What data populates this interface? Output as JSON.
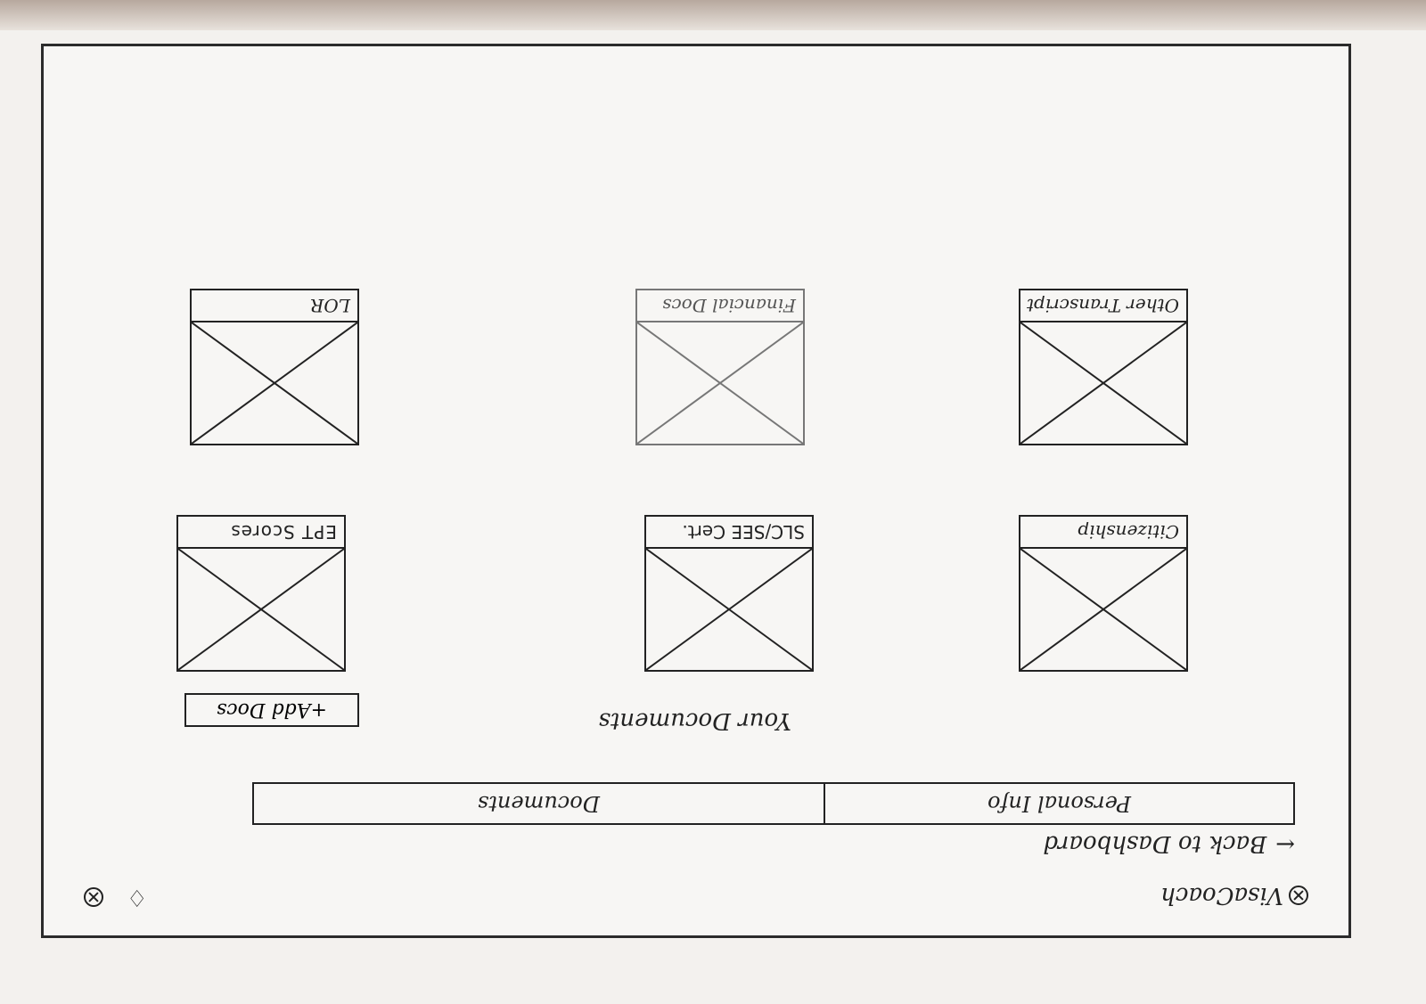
{
  "app": {
    "brand": "VisaCoach"
  },
  "header": {
    "bell_icon": "bell-icon",
    "close_icon": "circle-x-icon"
  },
  "nav": {
    "back_arrow": "←",
    "back_label": "Back to Dashboard"
  },
  "tabs": [
    {
      "label": "Personal Info"
    },
    {
      "label": "Documents"
    }
  ],
  "documents": {
    "title": "Your Documents",
    "add_button": "+Add Docs",
    "items": [
      {
        "label": "Citizenship"
      },
      {
        "label": "SLC/SEE Cert."
      },
      {
        "label": "EPT Scores"
      },
      {
        "label": "Other Transcript"
      },
      {
        "label": "Financial Docs"
      },
      {
        "label": "LOR"
      }
    ]
  }
}
